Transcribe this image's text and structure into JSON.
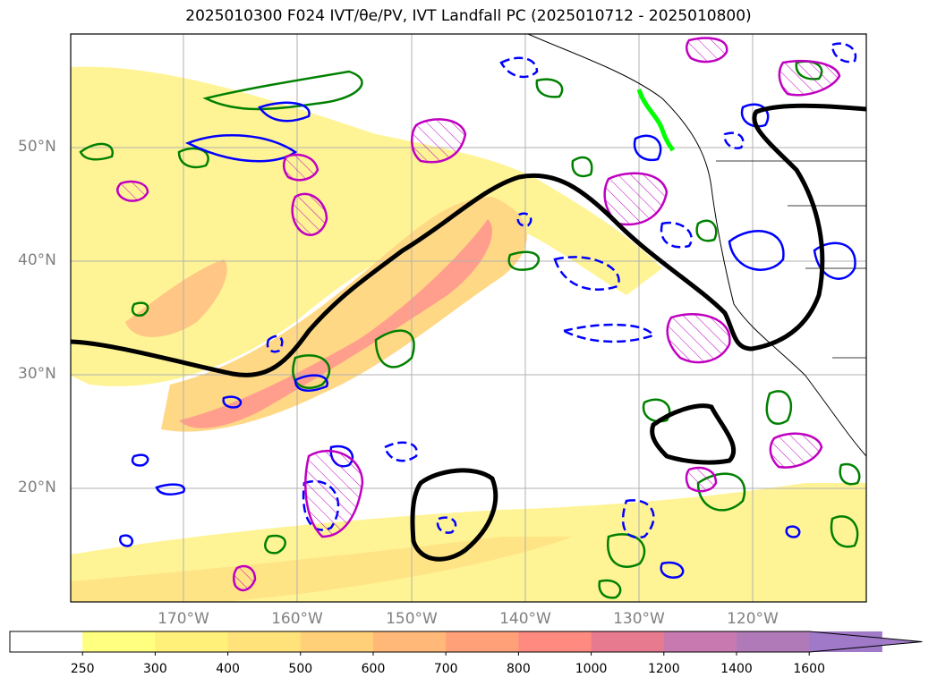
{
  "title": "2025010300 F024 IVT/θe/PV, IVT Landfall PC (2025010712 - 2025010800)",
  "map": {
    "lat_labels": [
      "50°N",
      "40°N",
      "30°N",
      "20°N"
    ],
    "lon_labels": [
      "170°W",
      "160°W",
      "150°W",
      "140°W",
      "130°W",
      "120°W"
    ]
  },
  "colorbar": {
    "ticks": [
      "250",
      "300",
      "400",
      "500",
      "600",
      "700",
      "800",
      "1000",
      "1200",
      "1400",
      "1600"
    ],
    "colors": [
      "#ffffff",
      "#ffff80",
      "#fff07a",
      "#ffe27a",
      "#ffd078",
      "#ffb878",
      "#ffa079",
      "#ff8a80",
      "#e87a90",
      "#c87ab0",
      "#b07ab8",
      "#a07ac8"
    ],
    "extend": "max"
  },
  "colors": {
    "ivt_line": "#000000",
    "theta_e": "#008000",
    "pv_pos": "#0000ff",
    "pv_neg": "#c000c0",
    "landfall": "#00ff00"
  }
}
